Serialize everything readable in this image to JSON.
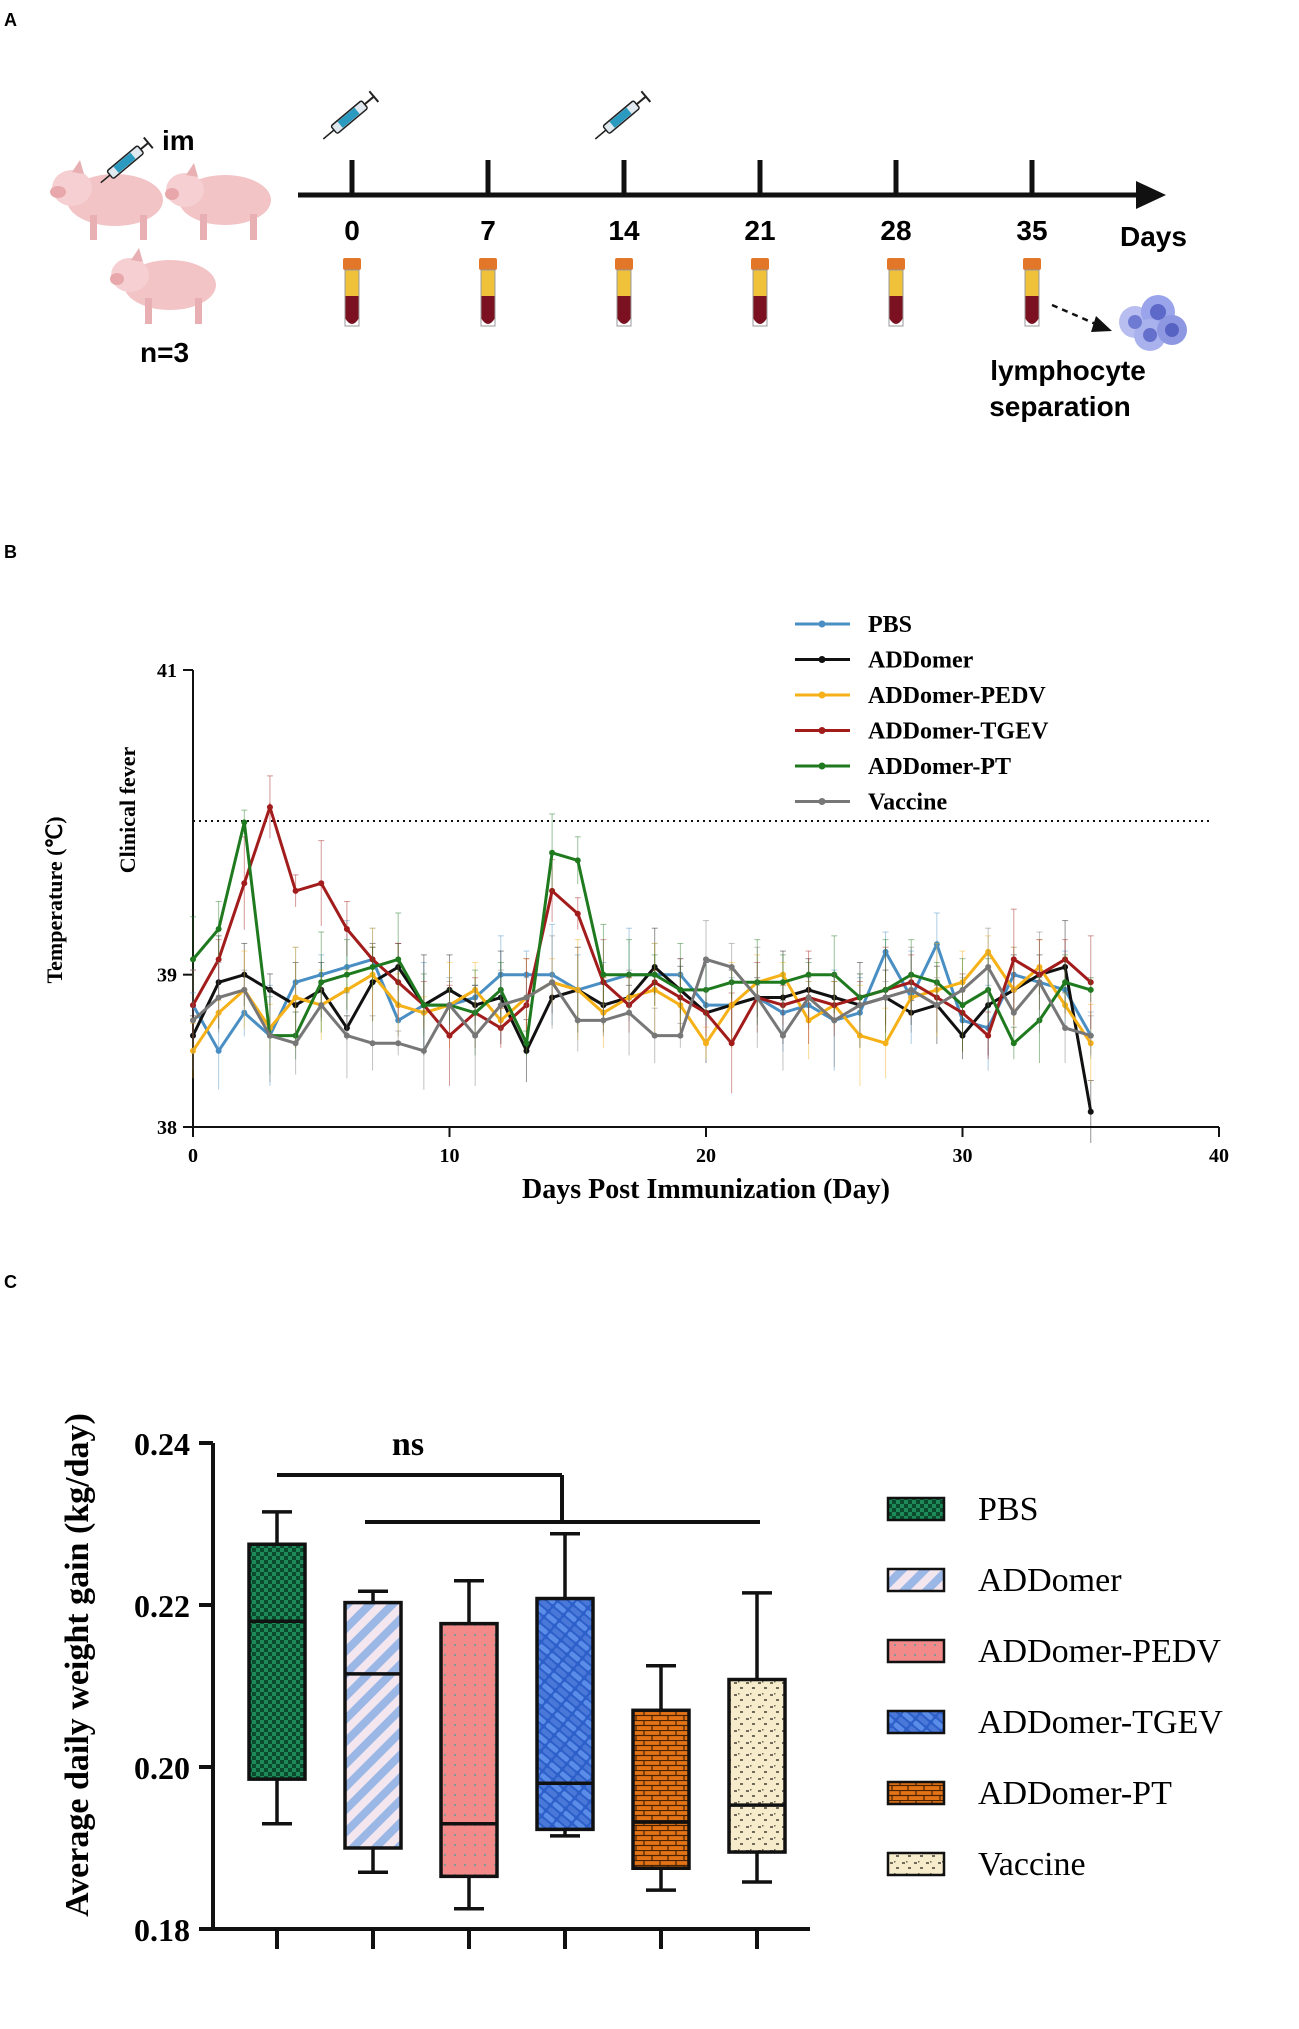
{
  "panel_labels": [
    "A",
    "B",
    "C"
  ],
  "panel_a": {
    "route_label": "im",
    "group_label": "n=3",
    "timeline_days": [
      "0",
      "7",
      "14",
      "21",
      "28",
      "35"
    ],
    "injection_days": [
      "0",
      "14"
    ],
    "axis_label": "Days",
    "endpoint_label_line1": "lymphocyte",
    "endpoint_label_line2": "separation"
  },
  "colors": {
    "PBS": "#4a8fc4",
    "ADDomer": "#111111",
    "ADDomer-PEDV": "#f5b117",
    "ADDomer-TGEV": "#a31c1c",
    "ADDomer-PT": "#1f7a1f",
    "Vaccine": "#777777"
  },
  "chart_data": [
    {
      "type": "line",
      "panel": "B",
      "xlabel": "Days Post Immunization (Day)",
      "ylabel": "Temperature (℃)",
      "xlim": [
        0,
        40
      ],
      "ylim": [
        38,
        41
      ],
      "xticks": [
        "0",
        "10",
        "20",
        "30",
        "40"
      ],
      "yticks": [
        "38",
        "39",
        "41"
      ],
      "reference_line": {
        "y": 40.0,
        "label": "Clinical fever",
        "style": "dotted"
      },
      "legend_position": "top-right",
      "x": [
        0,
        1,
        2,
        3,
        4,
        5,
        6,
        7,
        8,
        9,
        10,
        11,
        12,
        13,
        14,
        15,
        16,
        17,
        18,
        19,
        20,
        21,
        22,
        23,
        24,
        25,
        26,
        27,
        28,
        29,
        30,
        31,
        32,
        33,
        34,
        35
      ],
      "series": [
        {
          "name": "PBS",
          "values": [
            38.8,
            38.5,
            38.75,
            38.6,
            38.95,
            39.0,
            39.05,
            39.1,
            38.7,
            38.8,
            38.8,
            38.85,
            39.0,
            39.0,
            39.0,
            38.9,
            38.95,
            39.0,
            39.0,
            39.0,
            38.8,
            38.8,
            38.85,
            38.75,
            38.8,
            38.7,
            38.75,
            39.15,
            38.85,
            39.2,
            38.7,
            38.65,
            39.0,
            38.95,
            38.9,
            38.6
          ]
        },
        {
          "name": "ADDomer",
          "values": [
            38.6,
            38.95,
            39.0,
            38.9,
            38.8,
            38.9,
            38.65,
            38.95,
            39.05,
            38.8,
            38.9,
            38.8,
            38.85,
            38.5,
            38.85,
            38.9,
            38.8,
            38.85,
            39.05,
            38.9,
            38.75,
            38.8,
            38.85,
            38.85,
            38.9,
            38.85,
            38.8,
            38.85,
            38.75,
            38.8,
            38.6,
            38.8,
            38.9,
            39.0,
            39.05,
            38.1
          ]
        },
        {
          "name": "ADDomer-PEDV",
          "values": [
            38.5,
            38.75,
            38.9,
            38.65,
            38.85,
            38.8,
            38.9,
            39.0,
            38.8,
            38.75,
            38.8,
            38.9,
            38.7,
            38.85,
            38.95,
            38.9,
            38.75,
            38.85,
            38.9,
            38.8,
            38.55,
            38.8,
            38.95,
            39.0,
            38.7,
            38.8,
            38.6,
            38.55,
            38.85,
            38.9,
            38.95,
            39.15,
            38.9,
            39.05,
            38.8,
            38.55
          ]
        },
        {
          "name": "ADDomer-TGEV",
          "values": [
            38.8,
            39.1,
            39.6,
            40.1,
            39.55,
            39.6,
            39.3,
            39.1,
            38.95,
            38.8,
            38.6,
            38.75,
            38.65,
            38.8,
            39.55,
            39.4,
            38.95,
            38.8,
            38.95,
            38.85,
            38.75,
            38.55,
            38.85,
            38.8,
            38.85,
            38.8,
            38.85,
            38.9,
            38.95,
            38.85,
            38.75,
            38.6,
            39.1,
            39.0,
            39.1,
            38.95
          ]
        },
        {
          "name": "ADDomer-PT",
          "values": [
            39.1,
            39.3,
            40.0,
            38.6,
            38.6,
            38.95,
            39.0,
            39.05,
            39.1,
            38.8,
            38.8,
            38.75,
            38.9,
            38.55,
            39.8,
            39.75,
            39.0,
            39.0,
            39.0,
            38.9,
            38.9,
            38.95,
            38.95,
            38.95,
            39.0,
            39.0,
            38.85,
            38.9,
            39.0,
            38.95,
            38.8,
            38.9,
            38.55,
            38.7,
            38.95,
            38.9
          ]
        },
        {
          "name": "Vaccine",
          "values": [
            38.7,
            38.85,
            38.9,
            38.6,
            38.55,
            38.8,
            38.6,
            38.55,
            38.55,
            38.5,
            38.8,
            38.6,
            38.8,
            38.85,
            38.95,
            38.7,
            38.7,
            38.75,
            38.6,
            38.6,
            39.1,
            39.05,
            38.85,
            38.6,
            38.85,
            38.7,
            38.8,
            38.85,
            38.9,
            38.8,
            38.9,
            39.05,
            38.75,
            38.95,
            38.65,
            38.6
          ]
        }
      ]
    },
    {
      "type": "box",
      "panel": "C",
      "ylabel": "Average daily weight gain (kg/day)",
      "ylim": [
        0.18,
        0.24
      ],
      "yticks": [
        "0.18",
        "0.20",
        "0.22",
        "0.24"
      ],
      "significance_label": "ns",
      "legend_position": "right",
      "categories": [
        "PBS",
        "ADDomer",
        "ADDomer-PEDV",
        "ADDomer-TGEV",
        "ADDomer-PT",
        "Vaccine"
      ],
      "boxes": [
        {
          "name": "PBS",
          "min": 0.193,
          "q1": 0.1985,
          "median": 0.218,
          "q3": 0.2275,
          "max": 0.2315
        },
        {
          "name": "ADDomer",
          "min": 0.187,
          "q1": 0.19,
          "median": 0.2115,
          "q3": 0.2203,
          "max": 0.2217
        },
        {
          "name": "ADDomer-PEDV",
          "min": 0.1825,
          "q1": 0.1865,
          "median": 0.193,
          "q3": 0.2177,
          "max": 0.223
        },
        {
          "name": "ADDomer-TGEV",
          "min": 0.1915,
          "q1": 0.1923,
          "median": 0.198,
          "q3": 0.2208,
          "max": 0.2288
        },
        {
          "name": "ADDomer-PT",
          "min": 0.1848,
          "q1": 0.1875,
          "median": 0.1932,
          "q3": 0.207,
          "max": 0.2125
        },
        {
          "name": "Vaccine",
          "min": 0.1858,
          "q1": 0.1895,
          "median": 0.1953,
          "q3": 0.2108,
          "max": 0.2215
        }
      ]
    }
  ]
}
